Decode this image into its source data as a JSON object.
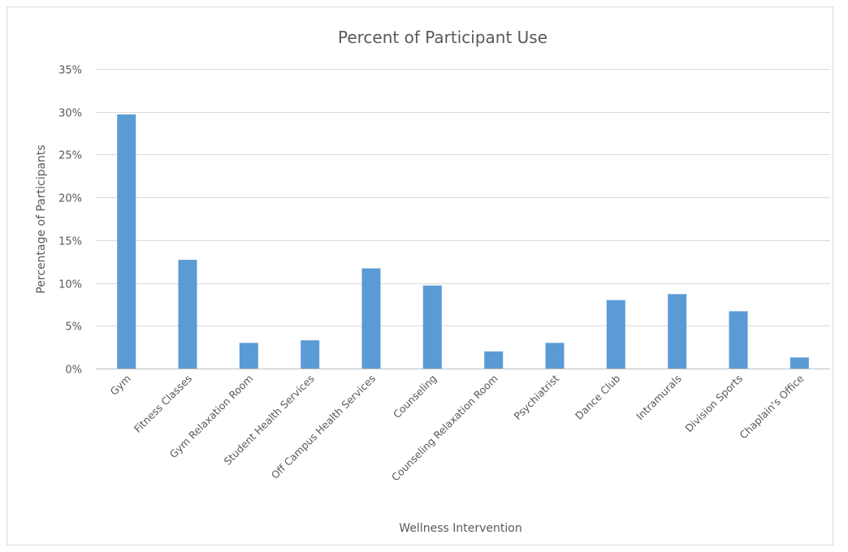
{
  "chart_data": {
    "type": "bar",
    "title": "Percent of Participant Use",
    "xlabel": "Wellness Intervention",
    "ylabel": "Percentage of Participants",
    "categories": [
      "Gym",
      "Fitness Classes",
      "Gym Relaxation Room",
      "Student Health Services",
      "Off Campus Health Services",
      "Counseling",
      "Counseling Relaxation Room",
      "Psychiatrist",
      "Dance Club",
      "Intramurals",
      "Division Sports",
      "Chaplain's Office"
    ],
    "values": [
      29.7,
      12.7,
      3.0,
      3.3,
      11.7,
      9.7,
      2.0,
      3.0,
      8.0,
      8.7,
      6.7,
      1.3
    ],
    "ylim": [
      0,
      35
    ],
    "yticks": [
      0,
      5,
      10,
      15,
      20,
      25,
      30,
      35
    ],
    "ytick_labels": [
      "0%",
      "5%",
      "10%",
      "15%",
      "20%",
      "25%",
      "30%",
      "35%"
    ],
    "grid": true,
    "legend": "none",
    "bar_color": "#5b9bd5"
  }
}
